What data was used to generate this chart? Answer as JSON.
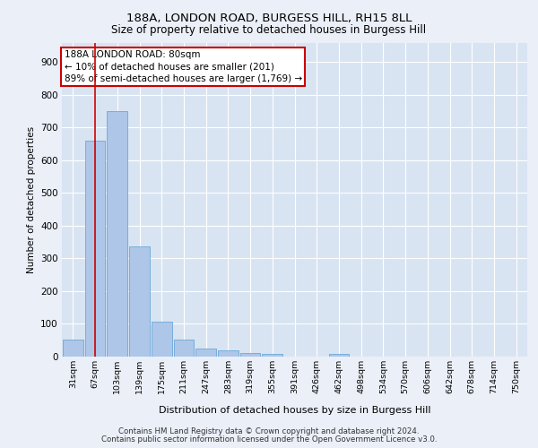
{
  "title_line1": "188A, LONDON ROAD, BURGESS HILL, RH15 8LL",
  "title_line2": "Size of property relative to detached houses in Burgess Hill",
  "xlabel": "Distribution of detached houses by size in Burgess Hill",
  "ylabel": "Number of detached properties",
  "categories": [
    "31sqm",
    "67sqm",
    "103sqm",
    "139sqm",
    "175sqm",
    "211sqm",
    "247sqm",
    "283sqm",
    "319sqm",
    "355sqm",
    "391sqm",
    "426sqm",
    "462sqm",
    "498sqm",
    "534sqm",
    "570sqm",
    "606sqm",
    "642sqm",
    "678sqm",
    "714sqm",
    "750sqm"
  ],
  "values": [
    52,
    660,
    750,
    335,
    105,
    50,
    22,
    18,
    10,
    8,
    0,
    0,
    8,
    0,
    0,
    0,
    0,
    0,
    0,
    0,
    0
  ],
  "bar_color": "#aec6e8",
  "bar_edge_color": "#5a9fd4",
  "background_color": "#eaeff8",
  "plot_bg_color": "#d8e4f2",
  "grid_color": "#ffffff",
  "annotation_text": "188A LONDON ROAD: 80sqm\n← 10% of detached houses are smaller (201)\n89% of semi-detached houses are larger (1,769) →",
  "annotation_box_color": "#ffffff",
  "annotation_box_edge": "#cc0000",
  "vline_x": 1,
  "vline_color": "#cc0000",
  "ylim": [
    0,
    960
  ],
  "yticks": [
    0,
    100,
    200,
    300,
    400,
    500,
    600,
    700,
    800,
    900
  ],
  "footer_line1": "Contains HM Land Registry data © Crown copyright and database right 2024.",
  "footer_line2": "Contains public sector information licensed under the Open Government Licence v3.0."
}
